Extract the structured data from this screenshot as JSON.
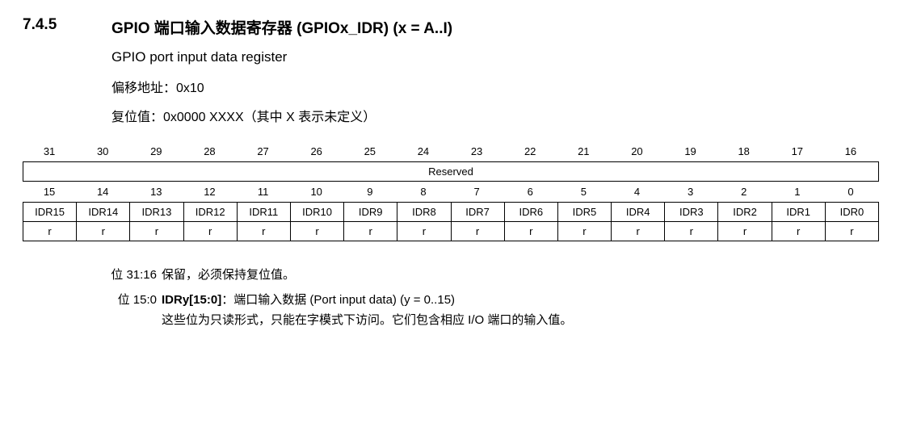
{
  "section_number": "7.4.5",
  "section_title": "GPIO 端口输入数据寄存器 (GPIOx_IDR) (x = A..I)",
  "subtitle": "GPIO port input data register",
  "offset_label": "偏移地址：0x10",
  "reset_label": "复位值：0x0000 XXXX（其中 X 表示未定义）",
  "bits_high": [
    "31",
    "30",
    "29",
    "28",
    "27",
    "26",
    "25",
    "24",
    "23",
    "22",
    "21",
    "20",
    "19",
    "18",
    "17",
    "16"
  ],
  "reserved_label": "Reserved",
  "bits_low": [
    "15",
    "14",
    "13",
    "12",
    "11",
    "10",
    "9",
    "8",
    "7",
    "6",
    "5",
    "4",
    "3",
    "2",
    "1",
    "0"
  ],
  "idr_labels": [
    "IDR15",
    "IDR14",
    "IDR13",
    "IDR12",
    "IDR11",
    "IDR10",
    "IDR9",
    "IDR8",
    "IDR7",
    "IDR6",
    "IDR5",
    "IDR4",
    "IDR3",
    "IDR2",
    "IDR1",
    "IDR0"
  ],
  "access_row": [
    "r",
    "r",
    "r",
    "r",
    "r",
    "r",
    "r",
    "r",
    "r",
    "r",
    "r",
    "r",
    "r",
    "r",
    "r",
    "r"
  ],
  "desc1_bits": "位 31:16",
  "desc1_text": "保留，必须保持复位值。",
  "desc2_bits": "位 15:0",
  "desc2_bold": "IDRy[15:0]",
  "desc2_rest": "：端口输入数据 (Port input data) (y = 0..15)",
  "desc2_sub": "这些位为只读形式，只能在字模式下访问。它们包含相应 I/O 端口的输入值。"
}
